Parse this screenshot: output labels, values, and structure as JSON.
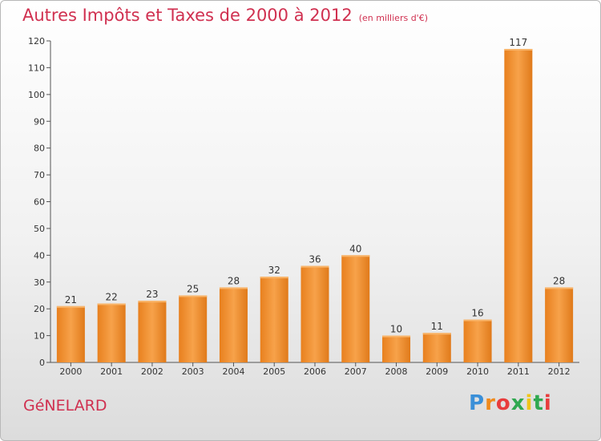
{
  "title": "Autres Impôts et Taxes de 2000 à 2012",
  "subtitle": "(en milliers d'€)",
  "town": "GéNELARD",
  "logo": {
    "letters": [
      "P",
      "r",
      "o",
      "x",
      "i",
      "t",
      "i"
    ],
    "colors": [
      "#3a8fd8",
      "#f08a1c",
      "#e83c3c",
      "#2fa84f",
      "#f0c419",
      "#2fa84f",
      "#e83c3c"
    ]
  },
  "colors": {
    "bar": "#f0922e",
    "bar_dark": "#e07a1a",
    "text": "#d03050",
    "axis": "#555555"
  },
  "chart_data": {
    "type": "bar",
    "categories": [
      "2000",
      "2001",
      "2002",
      "2003",
      "2004",
      "2005",
      "2006",
      "2007",
      "2008",
      "2009",
      "2010",
      "2011",
      "2012"
    ],
    "values": [
      21,
      22,
      23,
      25,
      28,
      32,
      36,
      40,
      10,
      11,
      16,
      117,
      28
    ],
    "data_labels": [
      "21",
      "22",
      "23",
      "25",
      "28",
      "32",
      "36",
      "40",
      "10",
      "11",
      "16",
      "117",
      "28"
    ],
    "ylim": [
      0,
      120
    ],
    "yticks": [
      "0",
      "10",
      "20",
      "30",
      "40",
      "50",
      "60",
      "70",
      "80",
      "90",
      "100",
      "110",
      "120"
    ],
    "grid": false,
    "xlabel": "",
    "ylabel": ""
  }
}
